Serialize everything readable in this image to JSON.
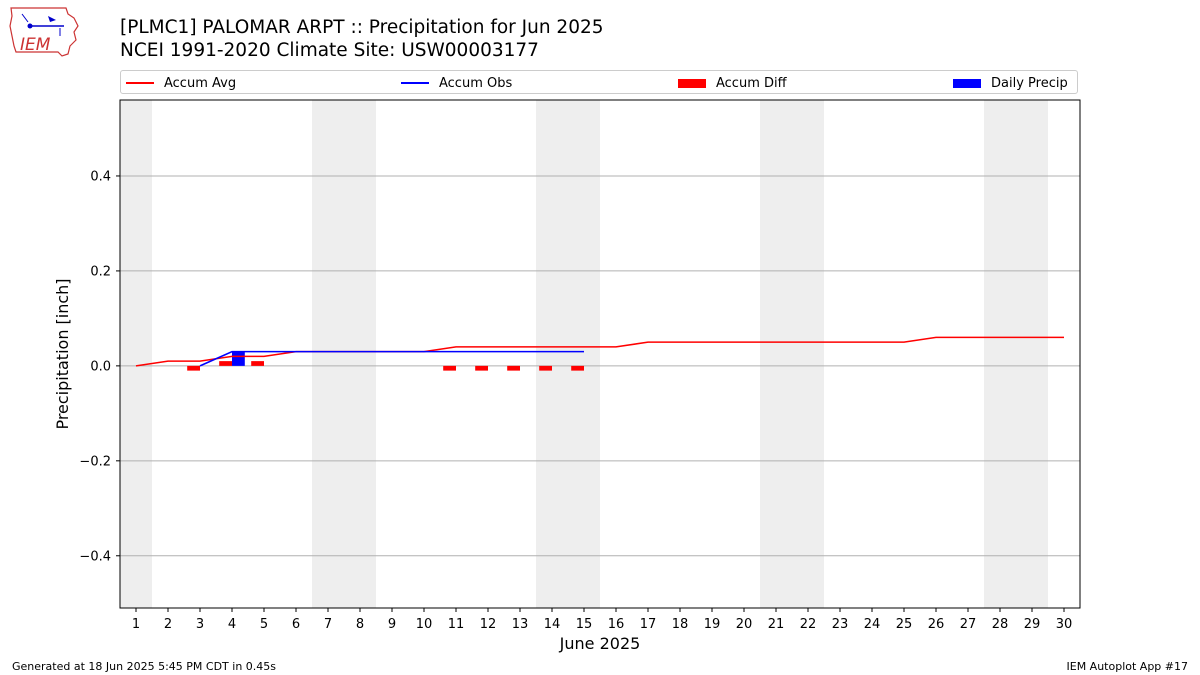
{
  "logo": {
    "text": "IEM"
  },
  "title_line1": "[PLMC1] PALOMAR ARPT :: Precipitation for Jun 2025",
  "title_line2": "NCEI 1991-2020 Climate Site: USW00003177",
  "footer_left": "Generated at 18 Jun 2025 5:45 PM CDT in 0.45s",
  "footer_right": "IEM Autoplot App #17",
  "colors": {
    "avg": "#ff0000",
    "obs": "#0000ff",
    "diff": "#ff0000",
    "daily": "#0000ff",
    "weekend": "#eeeeee"
  },
  "legend": [
    {
      "label": "Accum Avg",
      "kind": "line",
      "color": "#ff0000"
    },
    {
      "label": "Accum Obs",
      "kind": "line",
      "color": "#0000ff"
    },
    {
      "label": "Accum Diff",
      "kind": "patch",
      "color": "#ff0000"
    },
    {
      "label": "Daily Precip",
      "kind": "patch",
      "color": "#0000ff"
    }
  ],
  "chart_data": {
    "type": "line",
    "xlabel": "June 2025",
    "ylabel": "Precipitation [inch]",
    "xlim": [
      0.5,
      30.5
    ],
    "ylim": [
      -0.51,
      0.56
    ],
    "xticks": [
      1,
      2,
      3,
      4,
      5,
      6,
      7,
      8,
      9,
      10,
      11,
      12,
      13,
      14,
      15,
      16,
      17,
      18,
      19,
      20,
      21,
      22,
      23,
      24,
      25,
      26,
      27,
      28,
      29,
      30
    ],
    "yticks": [
      -0.4,
      -0.2,
      0.0,
      0.2,
      0.4
    ],
    "ytick_labels": [
      "−0.4",
      "−0.2",
      "0.0",
      "0.2",
      "0.4"
    ],
    "grid": "y",
    "weekend_days": [
      1,
      7,
      8,
      14,
      15,
      21,
      22,
      28,
      29
    ],
    "series": [
      {
        "name": "Accum Avg",
        "x": [
          1,
          2,
          3,
          4,
          5,
          6,
          7,
          8,
          9,
          10,
          11,
          12,
          13,
          14,
          15,
          16,
          17,
          18,
          19,
          20,
          21,
          22,
          23,
          24,
          25,
          26,
          27,
          28,
          29,
          30
        ],
        "values": [
          0.0,
          0.01,
          0.01,
          0.02,
          0.02,
          0.03,
          0.03,
          0.03,
          0.03,
          0.03,
          0.04,
          0.04,
          0.04,
          0.04,
          0.04,
          0.04,
          0.05,
          0.05,
          0.05,
          0.05,
          0.05,
          0.05,
          0.05,
          0.05,
          0.05,
          0.06,
          0.06,
          0.06,
          0.06,
          0.06
        ]
      },
      {
        "name": "Accum Obs",
        "x": [
          3,
          4,
          5,
          6,
          7,
          8,
          9,
          10,
          11,
          12,
          13,
          14,
          15
        ],
        "values": [
          0.0,
          0.03,
          0.03,
          0.03,
          0.03,
          0.03,
          0.03,
          0.03,
          0.03,
          0.03,
          0.03,
          0.03,
          0.03
        ]
      },
      {
        "name": "Accum Diff",
        "x": [
          3,
          4,
          5,
          11,
          12,
          13,
          14,
          15
        ],
        "values": [
          -0.01,
          0.01,
          0.01,
          -0.01,
          -0.01,
          -0.01,
          -0.01,
          -0.01
        ]
      },
      {
        "name": "Daily Precip",
        "x": [
          4
        ],
        "values": [
          0.03
        ]
      }
    ]
  }
}
